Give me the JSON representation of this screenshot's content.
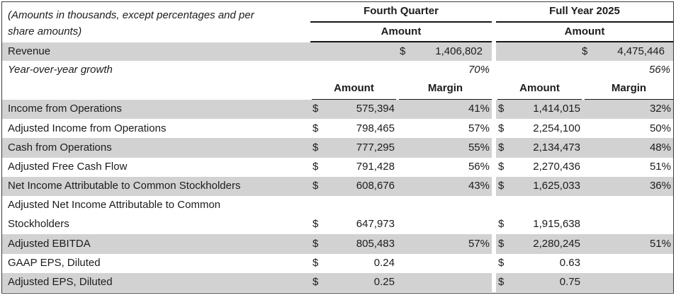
{
  "currency": "$",
  "caption": {
    "line1": "(Amounts in thousands, except percentages and per",
    "line2": "share amounts)"
  },
  "groups": [
    {
      "title": "Fourth Quarter",
      "header": "Amount"
    },
    {
      "title": "Full Year 2025",
      "header": "Amount"
    }
  ],
  "subheaders": {
    "amount": "Amount",
    "margin": "Margin"
  },
  "revenue": {
    "label": "Revenue",
    "q4_amount": "1,406,802",
    "fy_amount": "4,475,446"
  },
  "yoy": {
    "label": "Year-over-year growth",
    "q4": "70%",
    "fy": "56%"
  },
  "rows": [
    {
      "label": "Income from Operations",
      "q4_amount": "575,394",
      "q4_margin": "41%",
      "fy_amount": "1,414,015",
      "fy_margin": "32%"
    },
    {
      "label": "Adjusted Income from Operations",
      "q4_amount": "798,465",
      "q4_margin": "57%",
      "fy_amount": "2,254,100",
      "fy_margin": "50%"
    },
    {
      "label": "Cash from Operations",
      "q4_amount": "777,295",
      "q4_margin": "55%",
      "fy_amount": "2,134,473",
      "fy_margin": "48%"
    },
    {
      "label": "Adjusted Free Cash Flow",
      "q4_amount": "791,428",
      "q4_margin": "56%",
      "fy_amount": "2,270,436",
      "fy_margin": "51%"
    },
    {
      "label": "Net Income Attributable to Common Stockholders",
      "q4_amount": "608,676",
      "q4_margin": "43%",
      "fy_amount": "1,625,033",
      "fy_margin": "36%"
    },
    {
      "label": "Adjusted Net Income Attributable to Common"
    },
    {
      "label": "Stockholders",
      "q4_amount": "647,973",
      "fy_amount": "1,915,638"
    },
    {
      "label": "Adjusted EBITDA",
      "q4_amount": "805,483",
      "q4_margin": "57%",
      "fy_amount": "2,280,245",
      "fy_margin": "51%"
    },
    {
      "label": "GAAP EPS, Diluted",
      "q4_amount": "0.24",
      "fy_amount": "0.63"
    },
    {
      "label": "Adjusted EPS, Diluted",
      "q4_amount": "0.25",
      "fy_amount": "0.75"
    }
  ],
  "colors": {
    "shade": "#d2d2d2",
    "border": "#3c3c3c",
    "underline": "#161616",
    "text": "#1c1c1c"
  }
}
